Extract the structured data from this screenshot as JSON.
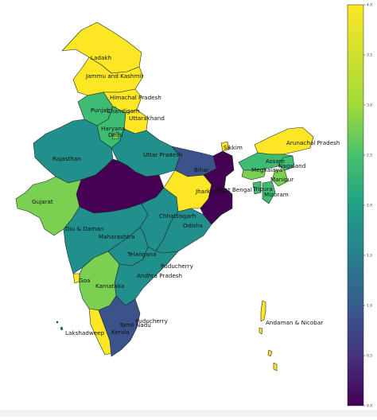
{
  "palette": {
    "yellow": "#fde725",
    "light_green": "#7ad151",
    "green": "#3fbc73",
    "teal": "#21908d",
    "blue": "#3b528b",
    "dark_purple": "#440154"
  },
  "states": {
    "ladakh": "Ladakh",
    "jk": "Jammu and Kashmir",
    "hp": "Himachal Pradesh",
    "punjab": "Punjab",
    "chandigarh": "Chandigarh",
    "uttarakhand": "Uttarakhand",
    "haryana": "Haryana",
    "delhi": "Delhi",
    "rajasthan": "Rajasthan",
    "up": "Uttar Pradesh",
    "sikkim": "Sikkim",
    "arunachal": "Arunachal Pradesh",
    "assam": "Assam",
    "nagaland": "Nagaland",
    "meghalaya": "Meghalaya",
    "manipur": "Manipur",
    "tripura": "Tripura",
    "mizoram": "Mizoram",
    "bihar": "Bihar",
    "jharkhand": "Jharkhand",
    "wb": "West Bengal",
    "gujarat": "Gujarat",
    "chhattisgarh": "Chhattisgarh",
    "odisha": "Odisha",
    "daman": "Diu & Daman",
    "maharashtra": "Maharashtra",
    "telangana": "Telangana",
    "puducherry_north": "Puducherry",
    "ap": "Andhra Pradesh",
    "goa": "Goa",
    "karnataka": "Karnataka",
    "puducherry_south": "Puducherry",
    "tn": "Tamil Nadu",
    "kerala": "Kerala",
    "lakshadweep": "Lakshadweep",
    "andaman": "Andaman & Nicobar"
  },
  "colorbar": {
    "min": 0.0,
    "max": 4.0,
    "ticks": [
      "0.0",
      "0.5",
      "1.0",
      "1.5",
      "2.0",
      "2.5",
      "3.0",
      "3.5",
      "4.0"
    ]
  }
}
